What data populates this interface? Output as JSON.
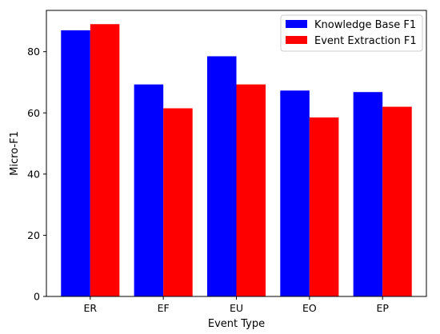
{
  "chart_data": {
    "type": "bar",
    "categories": [
      "ER",
      "EF",
      "EU",
      "EO",
      "EP"
    ],
    "series": [
      {
        "name": "Knowledge Base F1",
        "values": [
          87.0,
          69.3,
          78.5,
          67.3,
          66.8
        ],
        "color": "#0000ff"
      },
      {
        "name": "Event Extraction F1",
        "values": [
          89.0,
          61.5,
          69.3,
          58.5,
          62.0
        ],
        "color": "#ff0000"
      }
    ],
    "xlabel": "Event Type",
    "ylabel": "Micro-F1",
    "ylim": [
      0,
      93.5
    ],
    "yticks": [
      0,
      20,
      40,
      60,
      80
    ],
    "grid": false,
    "legend_position": "top-right"
  }
}
